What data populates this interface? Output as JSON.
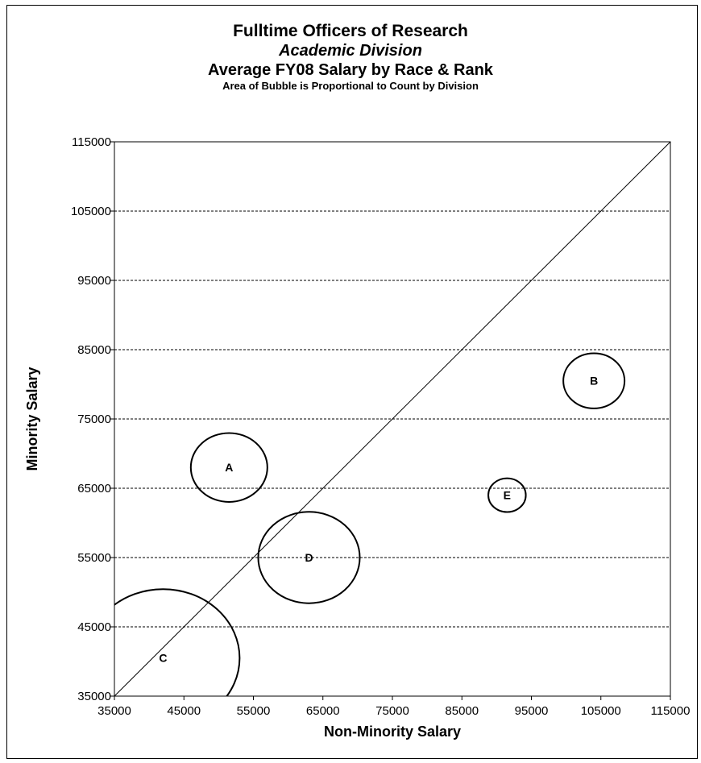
{
  "chart_data": {
    "type": "scatter",
    "title": "Fulltime Officers of Research",
    "subtitle_italic": "Academic Division",
    "subtitle": "Average FY08 Salary by Race & Rank",
    "note": "Area of Bubble is Proportional to Count by Division",
    "xlabel": "Non-Minority Salary",
    "ylabel": "Minority Salary",
    "xlim": [
      35000,
      115000
    ],
    "ylim": [
      35000,
      115000
    ],
    "xticks": [
      "35000",
      "45000",
      "55000",
      "65000",
      "75000",
      "85000",
      "95000",
      "105000",
      "115000"
    ],
    "yticks": [
      "35000",
      "45000",
      "55000",
      "65000",
      "75000",
      "85000",
      "95000",
      "105000",
      "115000"
    ],
    "grid": "horizontal dashed",
    "reference_line": "diagonal equality line",
    "points": [
      {
        "label": "A",
        "x": 51500,
        "y": 68000,
        "relative_count": 25
      },
      {
        "label": "B",
        "x": 104000,
        "y": 80500,
        "relative_count": 16
      },
      {
        "label": "C",
        "x": 42000,
        "y": 40500,
        "relative_count": 100
      },
      {
        "label": "D",
        "x": 63000,
        "y": 55000,
        "relative_count": 44
      },
      {
        "label": "E",
        "x": 91500,
        "y": 64000,
        "relative_count": 6
      }
    ]
  }
}
